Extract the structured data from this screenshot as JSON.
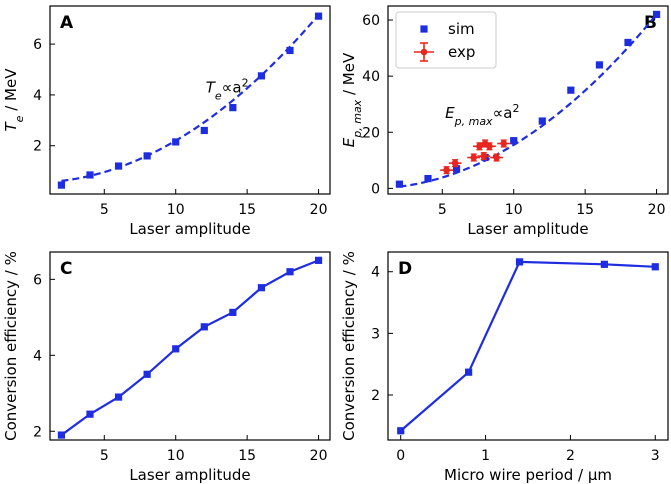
{
  "colors": {
    "series": "#1f2de0",
    "experiment": "#e8251e",
    "axis": "#000000"
  },
  "chart_data": [
    {
      "id": "A",
      "type": "scatter",
      "panel_label": "A",
      "xlabel": "Laser amplitude",
      "ylabel": {
        "sym": "T",
        "sub": "e",
        "rest": " / MeV"
      },
      "xlim": [
        1.2,
        20.8
      ],
      "ylim": [
        0.1,
        7.5
      ],
      "xticks": [
        5,
        10,
        15,
        20
      ],
      "yticks": [
        2,
        4,
        6
      ],
      "annotation": {
        "sym": "T",
        "sub": "e",
        "rest": "∝a",
        "sup": "2",
        "at_data": [
          12.1,
          4.1
        ]
      },
      "series": [
        {
          "name": "sim",
          "marker": "square",
          "x": [
            2,
            4,
            6,
            8,
            10,
            12,
            14,
            16,
            18,
            20
          ],
          "y": [
            0.45,
            0.85,
            1.2,
            1.6,
            2.15,
            2.6,
            3.5,
            4.75,
            5.75,
            7.1
          ]
        }
      ],
      "fit": {
        "name": "fit",
        "style": "dashed",
        "func": "a+b*x^2",
        "params": [
          0.55,
          0.0165
        ],
        "domain": [
          2,
          20
        ]
      }
    },
    {
      "id": "B",
      "type": "scatter",
      "panel_label": "B",
      "xlabel": "Laser amplitude",
      "ylabel": {
        "sym": "E",
        "sub": "p, max",
        "rest": " / MeV"
      },
      "xlim": [
        1.2,
        20.8
      ],
      "ylim": [
        -2,
        65
      ],
      "xticks": [
        5,
        10,
        15,
        20
      ],
      "yticks": [
        0,
        20,
        40,
        60
      ],
      "annotation": {
        "sym": "E",
        "sub": "p, max",
        "rest": "∝a",
        "sup": "2",
        "at_data": [
          5.2,
          25
        ]
      },
      "legend": {
        "placement": "upper-left",
        "entries": [
          "sim",
          "exp"
        ]
      },
      "series": [
        {
          "name": "sim",
          "marker": "square",
          "x": [
            2,
            4,
            6,
            8,
            10,
            12,
            14,
            16,
            18,
            20
          ],
          "y": [
            1.5,
            3.5,
            7,
            11,
            17,
            24,
            35,
            44,
            52,
            62
          ]
        },
        {
          "name": "exp",
          "marker": "circle-errorbar",
          "x": [
            5.3,
            5.9,
            7.2,
            7.6,
            8.0,
            8.3,
            8.8,
            9.3,
            7.9
          ],
          "y": [
            6.5,
            9,
            11,
            15,
            16,
            15,
            11,
            16,
            11.5
          ],
          "xerr": [
            0.45,
            0.45,
            0.45,
            0.45,
            0.45,
            0.45,
            0.45,
            0.45,
            0.45
          ],
          "yerr": [
            1.2,
            1.2,
            1.2,
            1.2,
            1.2,
            1.2,
            1.2,
            1.2,
            1.2
          ]
        }
      ],
      "fit": {
        "name": "fit",
        "style": "dashed",
        "func": "a+b*x^2",
        "params": [
          0.0,
          0.155
        ],
        "domain": [
          2,
          20
        ]
      }
    },
    {
      "id": "C",
      "type": "line",
      "panel_label": "C",
      "xlabel": "Laser amplitude",
      "ylabel": {
        "text": "Conversion efficiency / %"
      },
      "xlim": [
        1.2,
        20.8
      ],
      "ylim": [
        1.77,
        6.72
      ],
      "xticks": [
        5,
        10,
        15,
        20
      ],
      "yticks": [
        2,
        4,
        6
      ],
      "series": [
        {
          "name": "efficiency",
          "marker": "square",
          "x": [
            2,
            4,
            6,
            8,
            10,
            12,
            14,
            16,
            18,
            20
          ],
          "y": [
            1.9,
            2.45,
            2.9,
            3.5,
            4.17,
            4.75,
            5.13,
            5.78,
            6.2,
            6.5
          ]
        }
      ]
    },
    {
      "id": "D",
      "type": "line",
      "panel_label": "D",
      "xlabel": "Micro wire period / μm",
      "ylabel": {
        "text": "Conversion efficiency / %"
      },
      "xlim": [
        -0.15,
        3.15
      ],
      "ylim": [
        1.27,
        4.32
      ],
      "xticks": [
        0,
        1,
        2,
        3
      ],
      "yticks": [
        2,
        3,
        4
      ],
      "series": [
        {
          "name": "efficiency",
          "marker": "square",
          "x": [
            0,
            0.8,
            1.4,
            2.4,
            3.0
          ],
          "y": [
            1.42,
            2.37,
            4.16,
            4.12,
            4.08
          ]
        }
      ]
    }
  ]
}
